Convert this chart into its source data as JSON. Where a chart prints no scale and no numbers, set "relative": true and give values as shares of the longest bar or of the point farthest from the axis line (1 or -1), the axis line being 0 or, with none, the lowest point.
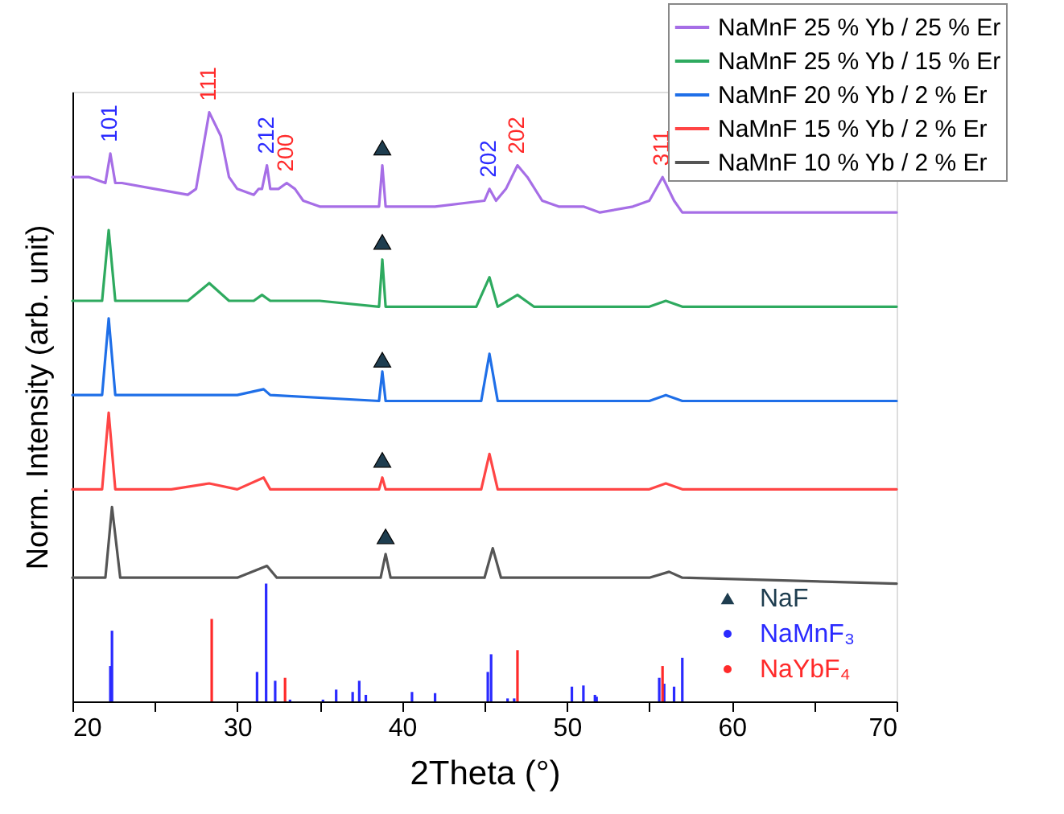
{
  "chart_data": {
    "type": "line",
    "relative": true,
    "xlabel": "2Theta (°)",
    "ylabel": "Norm. Intensity (arb. unit)",
    "xlim": [
      20,
      70
    ],
    "xticks": [
      20,
      {
        "value": 25,
        "label": null
      },
      30,
      {
        "value": 35,
        "label": null
      },
      40,
      {
        "value": 45,
        "label": null
      },
      50,
      {
        "value": 55,
        "label": null
      },
      60,
      {
        "value": 65,
        "label": null
      },
      70
    ],
    "legend": "top right",
    "line_style": "solid",
    "series": [
      {
        "name": "NaMnF 25 % Yb / 25 % Er",
        "color": "#a66ee6",
        "x": [
          20,
          21,
          22,
          22.3,
          22.6,
          23,
          25,
          27,
          27.5,
          28.3,
          29,
          29.5,
          30,
          31,
          31.3,
          31.5,
          31.8,
          32,
          32.5,
          33,
          33.5,
          34,
          35,
          37,
          38.6,
          38.8,
          39,
          42,
          45,
          45.3,
          45.7,
          46.3,
          47,
          47.6,
          48.5,
          49.5,
          51,
          52,
          54,
          55,
          55.8,
          56.5,
          57,
          60,
          62,
          65,
          70
        ],
        "values": [
          0.89,
          0.89,
          0.88,
          0.93,
          0.88,
          0.88,
          0.87,
          0.86,
          0.87,
          1.0,
          0.96,
          0.89,
          0.87,
          0.86,
          0.87,
          0.87,
          0.91,
          0.87,
          0.87,
          0.88,
          0.87,
          0.85,
          0.84,
          0.84,
          0.84,
          0.91,
          0.84,
          0.84,
          0.85,
          0.87,
          0.85,
          0.87,
          0.91,
          0.89,
          0.85,
          0.84,
          0.84,
          0.83,
          0.84,
          0.85,
          0.89,
          0.85,
          0.83,
          0.83,
          0.83,
          0.83,
          0.83
        ]
      },
      {
        "name": "NaMnF 25 % Yb / 15 % Er",
        "color": "#2eaa5f",
        "x": [
          20,
          21.8,
          22.2,
          22.6,
          24,
          27,
          28.3,
          29.5,
          31,
          31.5,
          32,
          33,
          35,
          38.6,
          38.8,
          39,
          42,
          44.5,
          45.3,
          45.8,
          47,
          48,
          52,
          55,
          56,
          57,
          70
        ],
        "values": [
          0.68,
          0.68,
          0.8,
          0.68,
          0.68,
          0.68,
          0.71,
          0.68,
          0.68,
          0.69,
          0.68,
          0.68,
          0.68,
          0.67,
          0.75,
          0.67,
          0.67,
          0.67,
          0.72,
          0.67,
          0.69,
          0.67,
          0.67,
          0.67,
          0.68,
          0.67,
          0.67
        ]
      },
      {
        "name": "NaMnF 20 % Yb / 2 % Er",
        "color": "#1f6fe8",
        "x": [
          20,
          21.8,
          22.2,
          22.6,
          26,
          28.3,
          30,
          31.6,
          32,
          38.6,
          38.8,
          39,
          44.8,
          45.3,
          45.8,
          55,
          56,
          57,
          70
        ],
        "values": [
          0.52,
          0.52,
          0.65,
          0.52,
          0.52,
          0.52,
          0.52,
          0.53,
          0.52,
          0.51,
          0.56,
          0.51,
          0.51,
          0.59,
          0.51,
          0.51,
          0.52,
          0.51,
          0.51
        ]
      },
      {
        "name": "NaMnF 15 % Yb / 2 % Er",
        "color": "#ff4545",
        "x": [
          20,
          21.8,
          22.2,
          22.6,
          26,
          28.3,
          30,
          31.6,
          32,
          38.6,
          38.8,
          39,
          44.8,
          45.3,
          45.8,
          55,
          56,
          57,
          70
        ],
        "values": [
          0.36,
          0.36,
          0.49,
          0.36,
          0.36,
          0.37,
          0.36,
          0.38,
          0.36,
          0.36,
          0.38,
          0.36,
          0.36,
          0.42,
          0.36,
          0.36,
          0.37,
          0.36,
          0.36
        ]
      },
      {
        "name": "NaMnF 10 % Yb / 2 % Er",
        "color": "#555555",
        "x": [
          20,
          22,
          22.4,
          22.9,
          30,
          31.8,
          32.4,
          38.7,
          39,
          39.3,
          45,
          45.5,
          46,
          55,
          56.2,
          57,
          70
        ],
        "values": [
          0.21,
          0.21,
          0.33,
          0.21,
          0.21,
          0.23,
          0.21,
          0.21,
          0.25,
          0.21,
          0.21,
          0.26,
          0.21,
          0.21,
          0.22,
          0.21,
          0.2
        ]
      },
      {
        "name": "NaF",
        "type": "scatter",
        "marker": "triangle",
        "color": "#1e3d4f",
        "x": [
          38.8,
          38.8,
          38.8,
          38.8,
          39.0
        ],
        "values": [
          0.94,
          0.78,
          0.58,
          0.41,
          0.28
        ]
      },
      {
        "name": "NaMnF₃",
        "type": "bar",
        "color": "#2a2aff",
        "x": [
          22.3,
          22.4,
          31.2,
          31.75,
          32.3,
          33.2,
          35.2,
          36.0,
          37.0,
          37.4,
          37.8,
          40.6,
          42.0,
          45.2,
          45.4,
          46.4,
          46.8,
          50.3,
          51.0,
          51.7,
          51.8,
          55.6,
          55.9,
          56.5,
          57.0
        ],
        "values": [
          0.06,
          0.12,
          0.05,
          0.2,
          0.035,
          0.003,
          0.003,
          0.02,
          0.016,
          0.035,
          0.011,
          0.016,
          0.014,
          0.05,
          0.08,
          0.005,
          0.005,
          0.025,
          0.027,
          0.011,
          0.008,
          0.04,
          0.03,
          0.025,
          0.074
        ]
      },
      {
        "name": "NaYbF₄",
        "type": "bar",
        "color": "#ff2a2a",
        "x": [
          28.45,
          32.9,
          47.0,
          55.8
        ],
        "values": [
          0.14,
          0.04,
          0.087,
          0.06
        ]
      }
    ],
    "annotations": [
      {
        "text": "101",
        "x": 22.3,
        "y": 0.93
      },
      {
        "text": "111",
        "x": 28.3,
        "y": 1.0
      },
      {
        "text": "212",
        "x": 31.8,
        "y": 0.91
      },
      {
        "text": "200",
        "x": 33,
        "y": 0.88
      },
      {
        "text": "202",
        "x": 45.3,
        "y": 0.87
      },
      {
        "text": "202",
        "x": 47,
        "y": 0.91
      },
      {
        "text": "311",
        "x": 55.8,
        "y": 0.89
      }
    ]
  }
}
